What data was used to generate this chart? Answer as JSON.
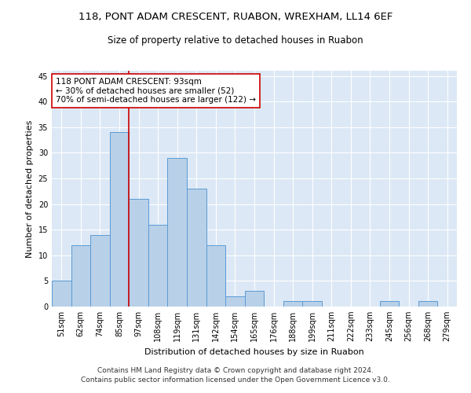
{
  "title1": "118, PONT ADAM CRESCENT, RUABON, WREXHAM, LL14 6EF",
  "title2": "Size of property relative to detached houses in Ruabon",
  "xlabel": "Distribution of detached houses by size in Ruabon",
  "ylabel": "Number of detached properties",
  "categories": [
    "51sqm",
    "62sqm",
    "74sqm",
    "85sqm",
    "97sqm",
    "108sqm",
    "119sqm",
    "131sqm",
    "142sqm",
    "154sqm",
    "165sqm",
    "176sqm",
    "188sqm",
    "199sqm",
    "211sqm",
    "222sqm",
    "233sqm",
    "245sqm",
    "256sqm",
    "268sqm",
    "279sqm"
  ],
  "values": [
    5,
    12,
    14,
    34,
    21,
    16,
    29,
    23,
    12,
    2,
    3,
    0,
    1,
    1,
    0,
    0,
    0,
    1,
    0,
    1,
    0
  ],
  "bar_color": "#b8d0e8",
  "bar_edge_color": "#5b9bd5",
  "vline_color": "#cc0000",
  "vline_x": 3.5,
  "annotation_text": "118 PONT ADAM CRESCENT: 93sqm\n← 30% of detached houses are smaller (52)\n70% of semi-detached houses are larger (122) →",
  "annotation_box_color": "#ffffff",
  "annotation_box_edge": "#cc0000",
  "ylim": [
    0,
    46
  ],
  "yticks": [
    0,
    5,
    10,
    15,
    20,
    25,
    30,
    35,
    40,
    45
  ],
  "footer": "Contains HM Land Registry data © Crown copyright and database right 2024.\nContains public sector information licensed under the Open Government Licence v3.0.",
  "bg_color": "#dce8f5",
  "title1_fontsize": 9.5,
  "title2_fontsize": 8.5,
  "xlabel_fontsize": 8,
  "ylabel_fontsize": 8,
  "footer_fontsize": 6.5,
  "tick_fontsize": 7,
  "annot_fontsize": 7.5
}
